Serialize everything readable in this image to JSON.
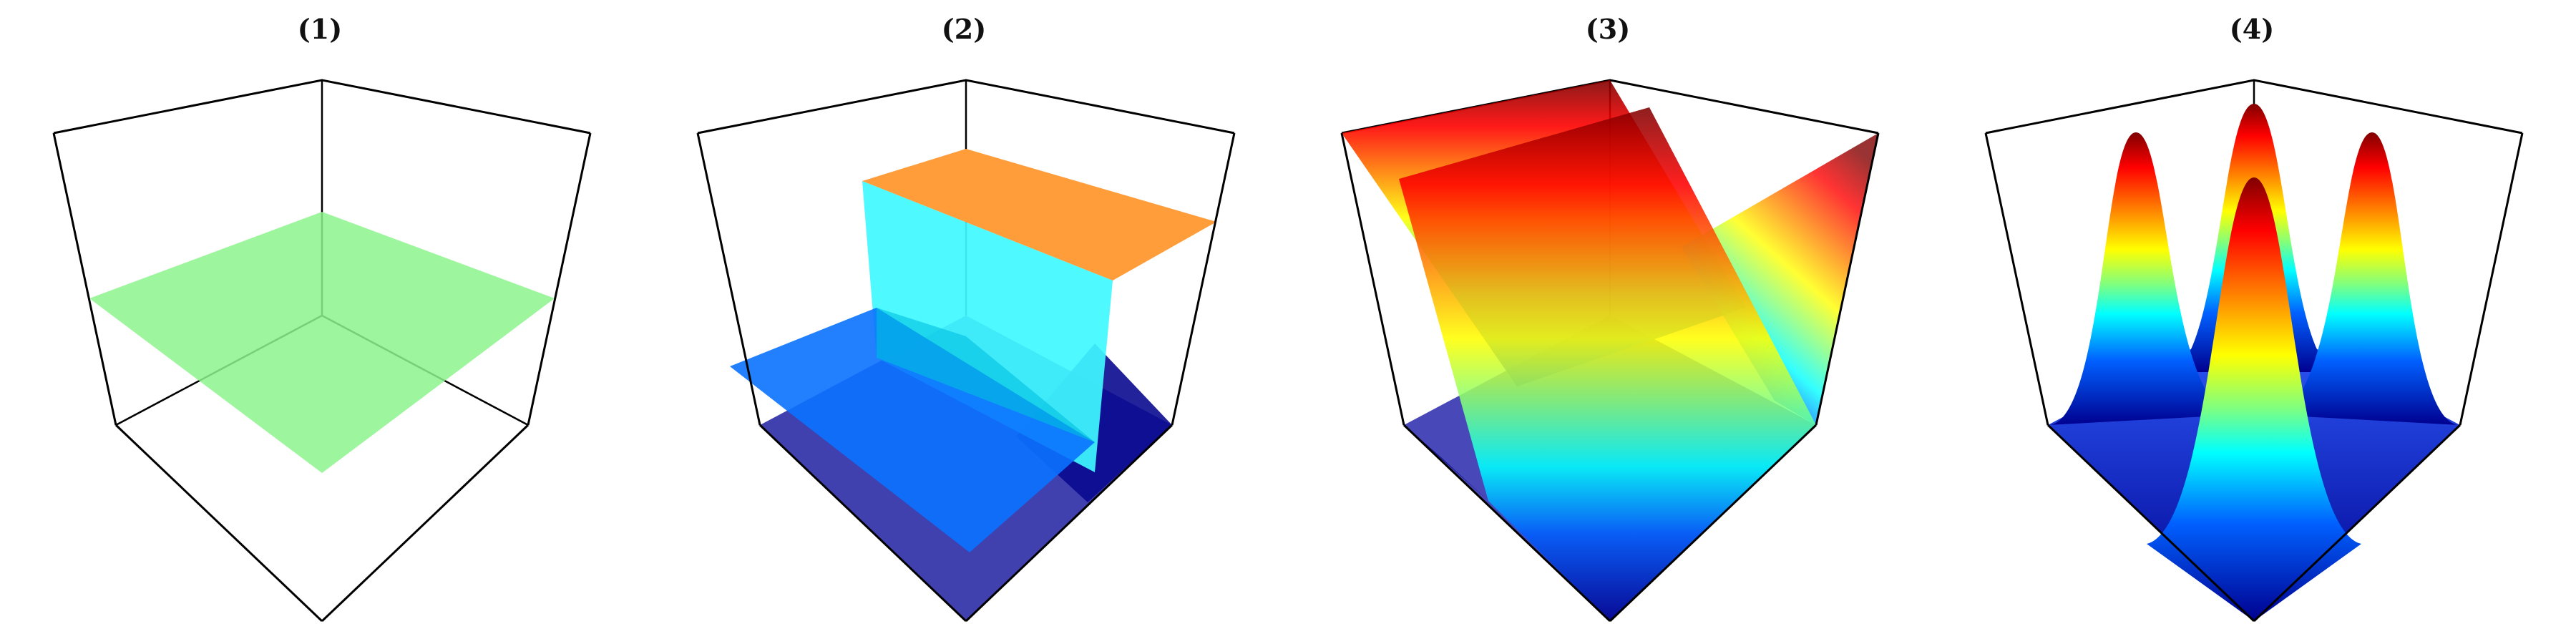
{
  "panels": [
    {
      "label": "(1)",
      "surface": "flat-plane",
      "colormap": "single-color"
    },
    {
      "label": "(2)",
      "surface": "step-function",
      "colormap": "jet"
    },
    {
      "label": "(3)",
      "surface": "sawtooth-ridges",
      "colormap": "jet"
    },
    {
      "label": "(4)",
      "surface": "gaussian-peaks",
      "colormap": "jet"
    }
  ],
  "colors": {
    "box_edge": "#000000",
    "plane_green": "#8cf58c",
    "step_orange": "#ff9d3a",
    "step_cyan": "#3ff8ff",
    "step_blue": "#0a72ff",
    "floor_dark_blue": "#1a1aa8",
    "jet_low": "#00008f",
    "jet_mid": "#7fff7f",
    "jet_high": "#800000"
  }
}
